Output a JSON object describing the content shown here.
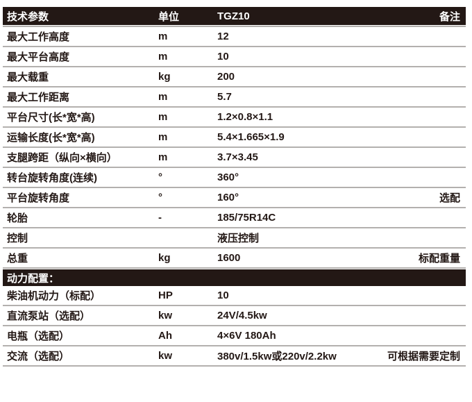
{
  "table": {
    "header": {
      "param": "技术参数",
      "unit": "单位",
      "model": "TGZ10",
      "remark": "备注"
    },
    "rows": [
      {
        "label": "最大工作高度",
        "unit": "m",
        "value": "12",
        "remark": ""
      },
      {
        "label": "最大平台高度",
        "unit": "m",
        "value": "10",
        "remark": ""
      },
      {
        "label": "最大载重",
        "unit": "kg",
        "value": "200",
        "remark": ""
      },
      {
        "label": "最大工作距离",
        "unit": "m",
        "value": "5.7",
        "remark": ""
      },
      {
        "label": "平台尺寸(长*宽*高)",
        "unit": "m",
        "value": "1.2×0.8×1.1",
        "remark": ""
      },
      {
        "label": "运输长度(长*宽*高)",
        "unit": "m",
        "value": "5.4×1.665×1.9",
        "remark": ""
      },
      {
        "label": "支腿跨距（纵向×横向）",
        "unit": "m",
        "value": "3.7×3.45",
        "remark": ""
      },
      {
        "label": "转台旋转角度(连续)",
        "unit": "°",
        "value": "360°",
        "remark": ""
      },
      {
        "label": "平台旋转角度",
        "unit": "°",
        "value": "160°",
        "remark": "选配"
      },
      {
        "label": "轮胎",
        "unit": "-",
        "value": "185/75R14C",
        "remark": ""
      },
      {
        "label": "控制",
        "unit": "",
        "value": "液压控制",
        "remark": ""
      },
      {
        "label": "总重",
        "unit": "kg",
        "value": "1600",
        "remark": "标配重量"
      }
    ],
    "section_header": "动力配置：",
    "power_rows": [
      {
        "label": "柴油机动力（标配）",
        "unit": "HP",
        "value": "10",
        "remark": ""
      },
      {
        "label": "直流泵站（选配）",
        "unit": "kw",
        "value": "24V/4.5kw",
        "remark": ""
      },
      {
        "label": "电瓶（选配）",
        "unit": "Ah",
        "value": "4×6V 180Ah",
        "remark": ""
      },
      {
        "label": "交流（选配）",
        "unit": "kw",
        "value": "380v/1.5kw或220v/2.2kw",
        "remark": "可根据需要定制"
      }
    ],
    "colors": {
      "header_bg": "#231815",
      "header_text": "#ffffff",
      "body_text": "#231815",
      "divider": "#b3b0ae"
    }
  }
}
